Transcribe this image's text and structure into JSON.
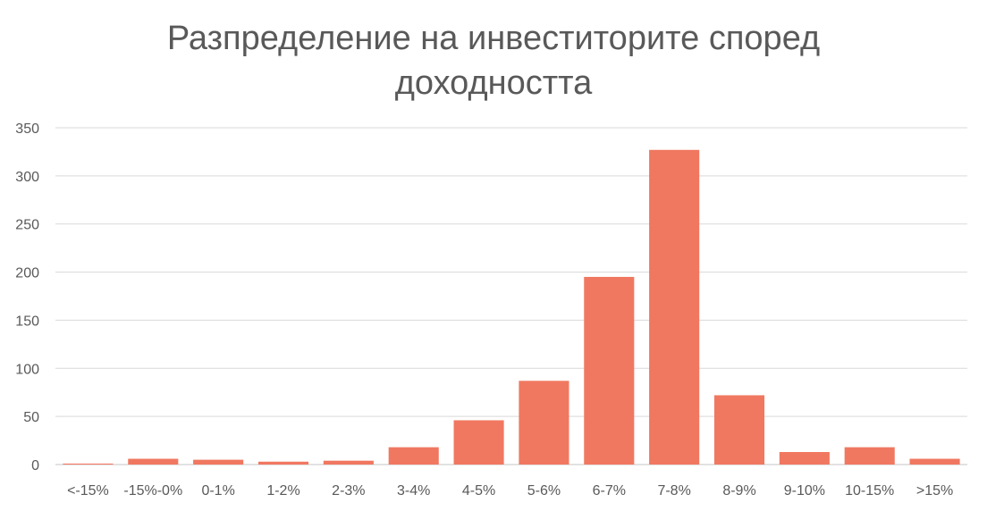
{
  "chart_data": {
    "type": "bar",
    "title_lines": [
      "Разпределение на инвеститорите според",
      "доходността"
    ],
    "categories": [
      "<-15%",
      "-15%-0%",
      "0-1%",
      "1-2%",
      "2-3%",
      "3-4%",
      "4-5%",
      "5-6%",
      "6-7%",
      "7-8%",
      "8-9%",
      "9-10%",
      "10-15%",
      ">15%"
    ],
    "values": [
      1,
      6,
      5,
      3,
      4,
      18,
      46,
      87,
      195,
      327,
      72,
      13,
      18,
      6
    ],
    "xlabel": "",
    "ylabel": "",
    "ylim": [
      0,
      350
    ],
    "yticks": [
      0,
      50,
      100,
      150,
      200,
      250,
      300,
      350
    ],
    "grid": true,
    "legend": "none",
    "colors": {
      "bar": "#F07860",
      "grid": "#D9D9D9",
      "text": "#595959"
    }
  }
}
